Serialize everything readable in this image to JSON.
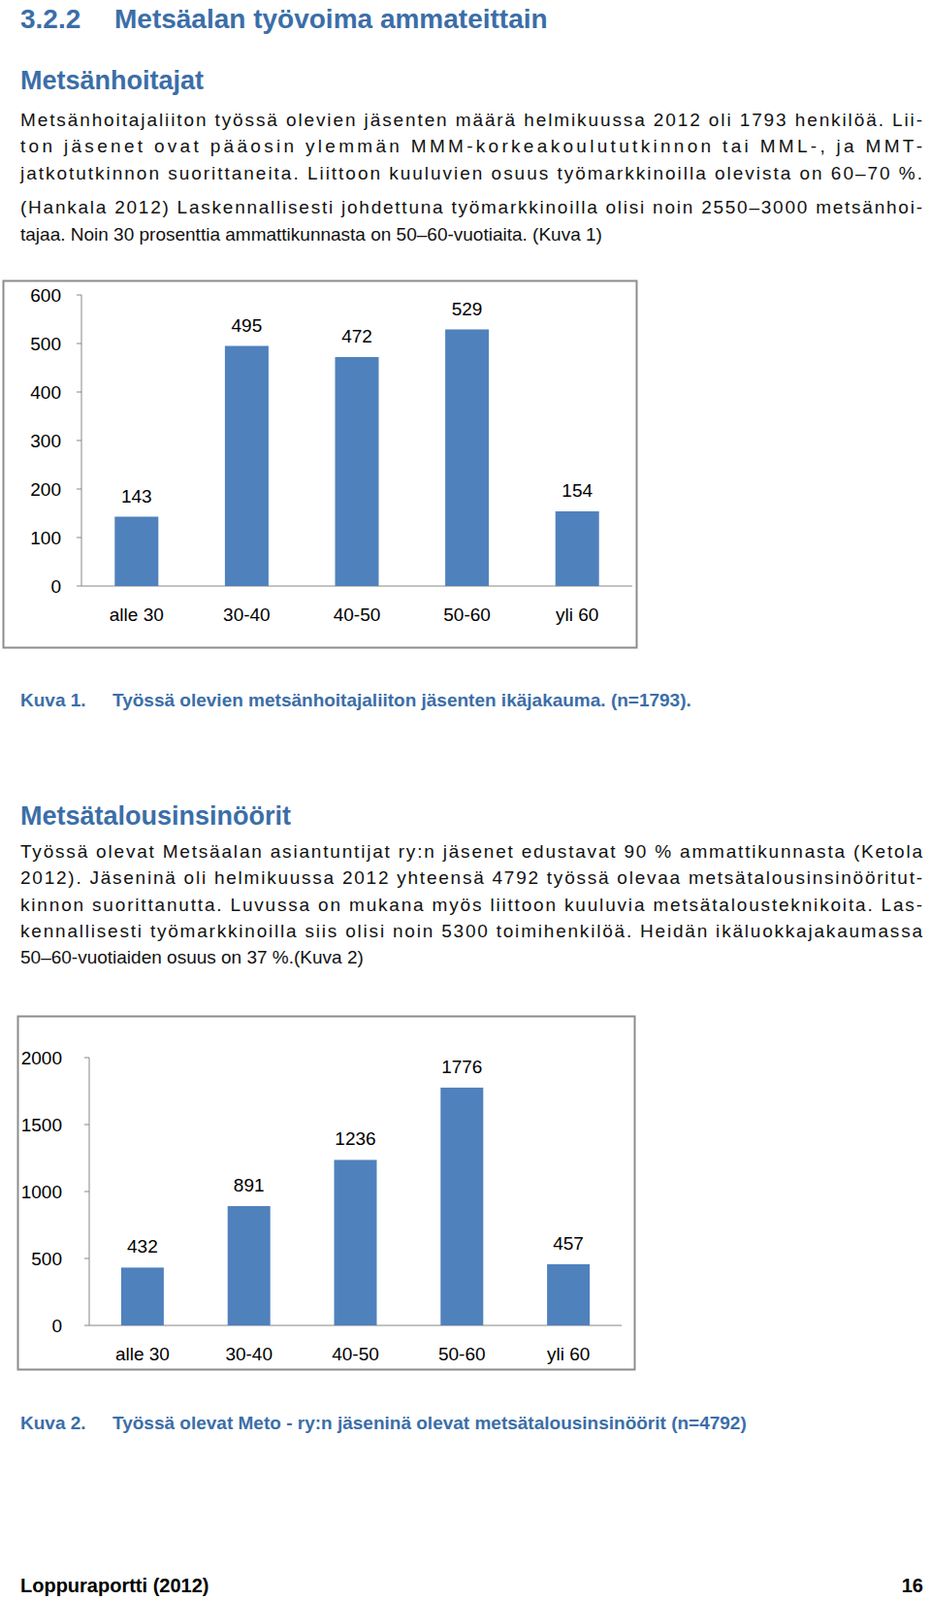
{
  "header": {
    "section": "3.2.2",
    "title": "Metsäalan työvoima ammateittain"
  },
  "sections": [
    {
      "heading": "Metsänhoitajat",
      "lines": [
        "Metsänhoitajaliiton työssä olevien jäsenten määrä helmikuussa 2012 oli 1793 henkilöä. Lii-",
        "ton jäsenet ovat pääosin ylemmän MMM-korkeakoulututkinnon tai MML-, ja MMT-",
        "jatkotutkinnon suorittaneita. Liittoon kuuluvien osuus työmarkkinoilla olevista on 60–70 %.",
        "(Hankala 2012) Laskennallisesti johdettuna työmarkkinoilla olisi noin 2550–3000 metsänhoi-",
        "tajaa. Noin 30 prosenttia ammattikunnasta on 50–60-vuotiaita. (Kuva 1)"
      ],
      "figure": {
        "label": "Kuva 1.",
        "caption": "Työssä olevien metsänhoitajaliiton jäsenten ikäjakauma. (n=1793)."
      }
    },
    {
      "heading": "Metsätalousinsinöörit",
      "lines": [
        "Työssä olevat Metsäalan asiantuntijat ry:n jäsenet edustavat 90 % ammattikunnasta (Ketola",
        "2012). Jäseninä oli helmikuussa 2012 yhteensä 4792 työssä olevaa metsätalousinsinööritut-",
        "kinnon suorittanutta. Luvussa on mukana myös liittoon kuuluvia metsätalousteknikoita. Las-",
        "kennallisesti työmarkkinoilla siis olisi noin 5300 toimihenkilöä. Heidän ikäluokkajakaumassa",
        "50–60-vuotiaiden osuus on 37 %.(Kuva 2)"
      ],
      "figure": {
        "label": "Kuva 2.",
        "caption": "Työssä olevat Meto - ry:n jäseninä olevat metsätalousinsinöörit (n=4792)"
      }
    }
  ],
  "chart_data": [
    {
      "type": "bar",
      "categories": [
        "alle 30",
        "30-40",
        "40-50",
        "50-60",
        "yli 60"
      ],
      "values": [
        143,
        495,
        472,
        529,
        154
      ],
      "color": "#4f81bd",
      "ylim": [
        0,
        600
      ],
      "yticks": [
        0,
        100,
        200,
        300,
        400,
        500,
        600
      ],
      "grid": false,
      "data_labels": true
    },
    {
      "type": "bar",
      "categories": [
        "alle 30",
        "30-40",
        "40-50",
        "50-60",
        "yli 60"
      ],
      "values": [
        432,
        891,
        1236,
        1776,
        457
      ],
      "color": "#4f81bd",
      "ylim": [
        0,
        2000
      ],
      "yticks": [
        0,
        500,
        1000,
        1500,
        2000
      ],
      "grid": false,
      "data_labels": true
    }
  ],
  "footer": {
    "left": "Loppuraportti (2012)",
    "right": "16"
  }
}
